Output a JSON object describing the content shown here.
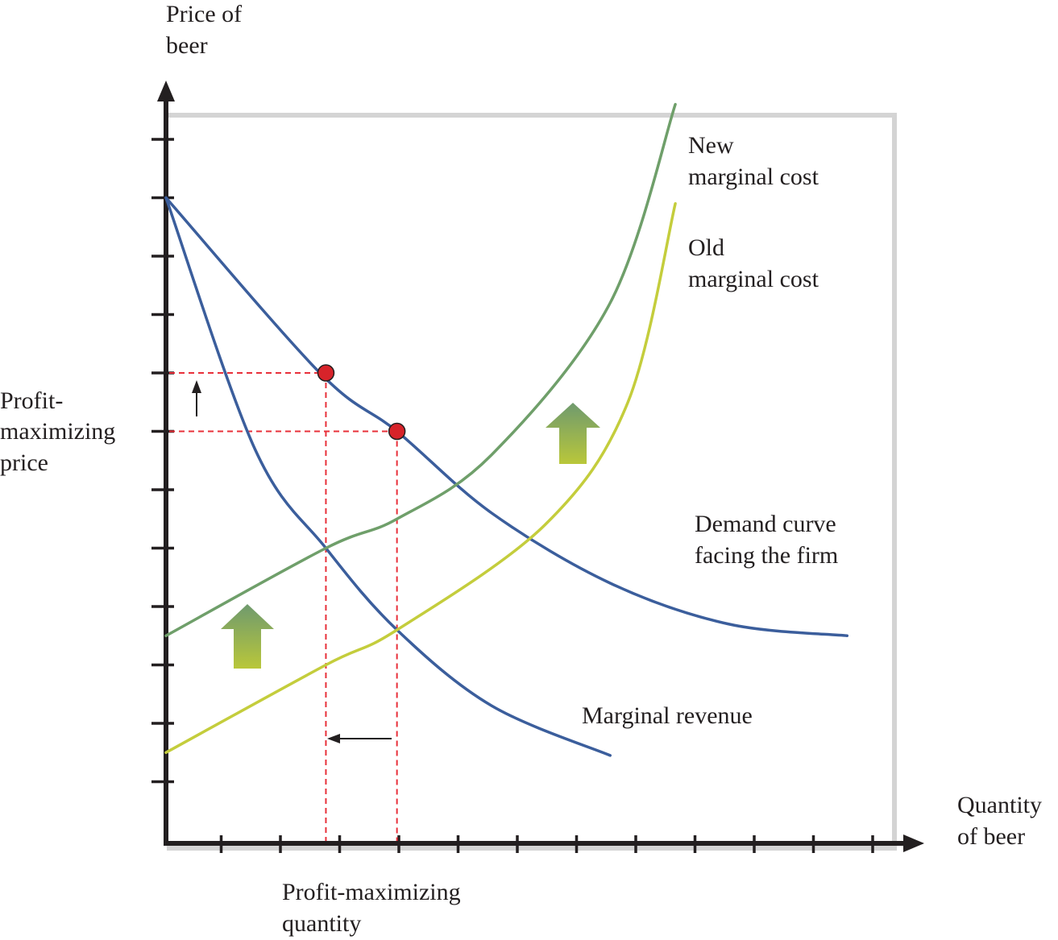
{
  "chart_data": {
    "type": "line",
    "title": "",
    "ylabel_lines": [
      "Price of",
      "beer"
    ],
    "xlabel_lines": [
      "Quantity",
      "of beer"
    ],
    "price_label_lines": [
      "Profit-",
      "maximizing",
      "price"
    ],
    "quantity_label_lines": [
      "Profit-maximizing",
      "quantity"
    ],
    "grid": false,
    "series": [
      {
        "name_lines": [
          "Demand curve",
          "facing the firm"
        ],
        "color": "#3b5e9c",
        "x": [
          0,
          2.6,
          3.9,
          5.5,
          7.5,
          9.5,
          11.5
        ],
        "y": [
          11,
          8,
          7,
          5.6,
          4.4,
          3.7,
          3.5
        ]
      },
      {
        "name_lines": [
          "Marginal revenue"
        ],
        "color": "#3b5e9c",
        "x": [
          0,
          1.5,
          2.7,
          3.9,
          5.5,
          7.5
        ],
        "y": [
          11,
          6.7,
          5,
          3.6,
          2.3,
          1.45
        ]
      },
      {
        "name_lines": [
          "New",
          "marginal cost"
        ],
        "color": "#6f9f6a",
        "x": [
          0,
          2.7,
          3.9,
          5.5,
          7.5,
          8.6
        ],
        "y": [
          3.5,
          5,
          5.5,
          6.6,
          9.2,
          12.6
        ]
      },
      {
        "name_lines": [
          "Old",
          "marginal cost"
        ],
        "color": "#c4cd3c",
        "x": [
          0,
          2.7,
          3.9,
          6.4,
          7.8,
          8.6
        ],
        "y": [
          1.5,
          3,
          3.6,
          5.4,
          7.5,
          10.9
        ]
      }
    ],
    "equilibria": [
      {
        "label": "new",
        "x": 2.7,
        "y": 8
      },
      {
        "label": "old",
        "x": 3.9,
        "y": 7
      }
    ],
    "colors": {
      "axis": "#231f20",
      "guide": "#e8303a",
      "dot": "#d7232a",
      "frame_shadow": "#d9d9d9"
    }
  }
}
